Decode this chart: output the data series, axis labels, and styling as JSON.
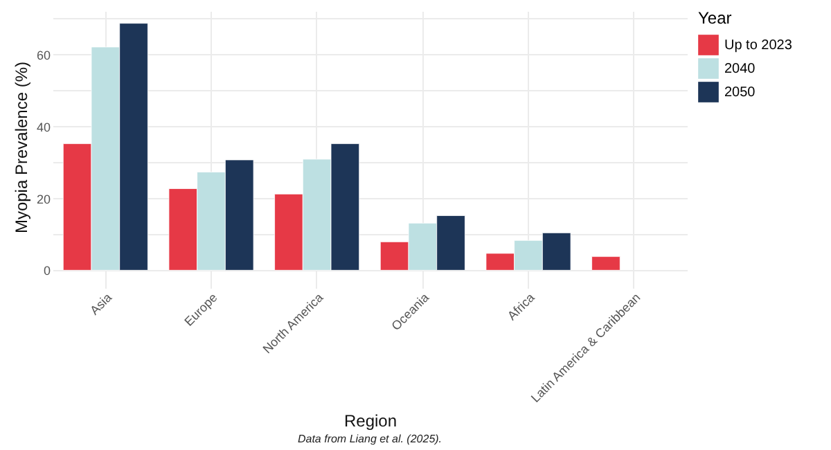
{
  "chart_data": {
    "type": "bar",
    "xlabel": "Region",
    "ylabel": "Myopia Prevalence (%)",
    "legend_title": "Year",
    "categories": [
      "Asia",
      "Europe",
      "North America",
      "Oceania",
      "Africa",
      "Latin America & Caribbean"
    ],
    "series": [
      {
        "name": "Up to 2023",
        "color": "#e63946",
        "values": [
          35.2,
          22.7,
          21.2,
          7.9,
          4.7,
          3.8
        ]
      },
      {
        "name": "2040",
        "color": "#bde0e2",
        "values": [
          62.1,
          27.3,
          30.9,
          13.1,
          8.3,
          null
        ]
      },
      {
        "name": "2050",
        "color": "#1d3557",
        "values": [
          68.7,
          30.7,
          35.2,
          15.2,
          10.4,
          null
        ]
      }
    ],
    "ylim": [
      -3.4,
      72.1
    ],
    "yticks": [
      0,
      {
        "value": 10,
        "label": null
      },
      20,
      {
        "value": 30,
        "label": null
      },
      40,
      {
        "value": 50,
        "label": null
      },
      60,
      {
        "value": 70,
        "label": null
      }
    ],
    "grid": true,
    "legend": "right",
    "annotations": [
      "Data from Liang et al. (2025)."
    ]
  }
}
